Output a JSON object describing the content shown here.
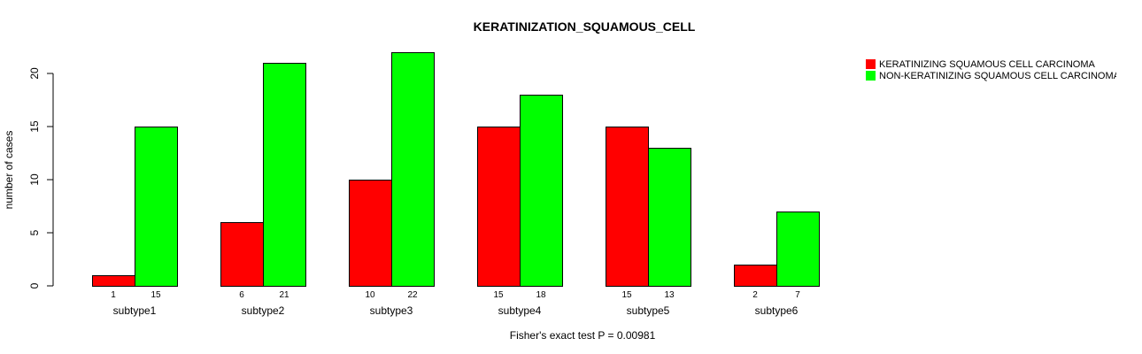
{
  "chart_data": {
    "type": "bar",
    "title": "KERATINIZATION_SQUAMOUS_CELL",
    "xlabel": "Fisher's exact test P = 0.00981",
    "ylabel": "number of cases",
    "categories": [
      "subtype1",
      "subtype2",
      "subtype3",
      "subtype4",
      "subtype5",
      "subtype6"
    ],
    "series": [
      {
        "name": "KERATINIZING SQUAMOUS CELL CARCINOMA",
        "color": "#ff0000",
        "values": [
          1,
          6,
          10,
          15,
          15,
          2
        ]
      },
      {
        "name": "NON-KERATINIZING SQUAMOUS CELL CARCINOMA",
        "color": "#00ff00",
        "values": [
          15,
          21,
          22,
          18,
          13,
          7
        ]
      }
    ],
    "yticks": [
      0,
      5,
      10,
      15,
      20
    ],
    "ylim": [
      0,
      22
    ],
    "legend_position": "top-right",
    "grid": false
  }
}
